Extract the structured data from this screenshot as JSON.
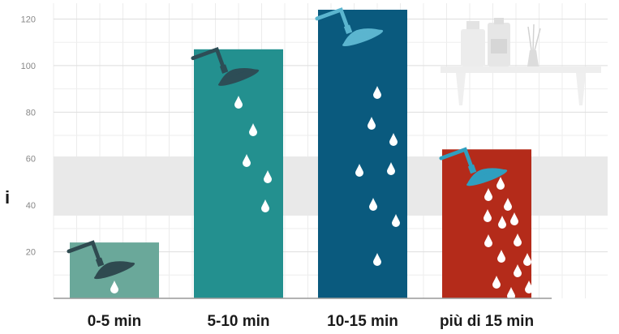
{
  "chart_data": {
    "type": "bar",
    "title": "",
    "xlabel": "",
    "ylabel": "",
    "categories": [
      "0-5 min",
      "5-10 min",
      "10-15 min",
      "più di 15 min"
    ],
    "values": [
      24,
      107,
      124,
      64
    ],
    "colors": [
      "#6aa89a",
      "#23908f",
      "#0a5a7e",
      "#b42b1a"
    ],
    "ylim": [
      0,
      124
    ],
    "yticks": [
      20,
      40,
      60,
      80,
      100,
      120
    ],
    "grid": true,
    "left_edge_text": "i",
    "icons": [
      "shower-head-icon",
      "water-drop-icon",
      "bathroom-shelf-icon"
    ]
  }
}
